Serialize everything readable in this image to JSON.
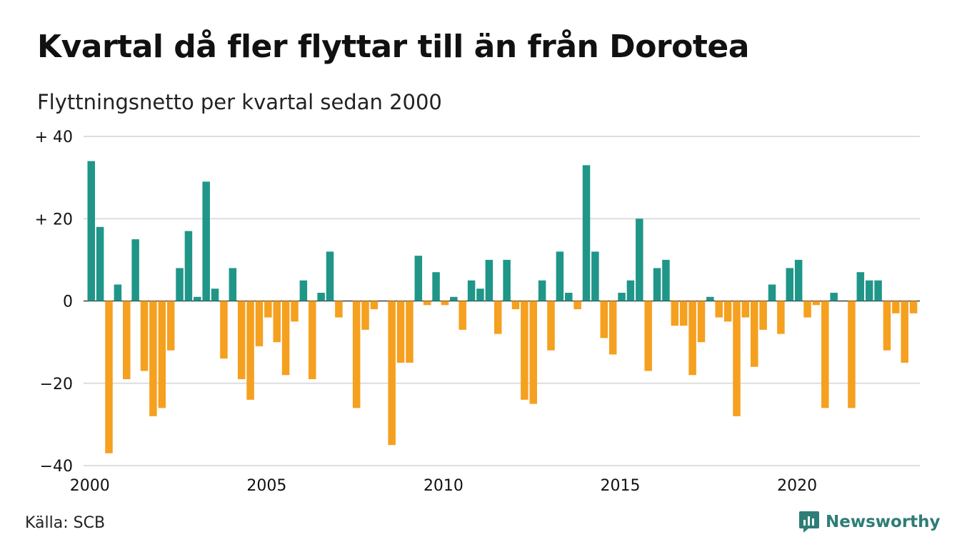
{
  "title": "Kvartal då fler flyttar till än från Dorotea",
  "subtitle": "Flyttningsnetto per kvartal sedan 2000",
  "source": "Källa: SCB",
  "brand": "Newsworthy",
  "colors": {
    "positive": "#1f9688",
    "negative": "#f5a01f",
    "grid": "#dddddd",
    "brand": "#2e7d76"
  },
  "chart_data": {
    "type": "bar",
    "xlabel": "",
    "ylabel": "",
    "ylim": [
      -40,
      40
    ],
    "y_ticks": [
      {
        "value": 40,
        "label": "+ 40"
      },
      {
        "value": 20,
        "label": "+ 20"
      },
      {
        "value": 0,
        "label": "0"
      },
      {
        "value": -20,
        "label": "−20"
      },
      {
        "value": -40,
        "label": "−40"
      }
    ],
    "x_ticks": [
      "2000",
      "2005",
      "2010",
      "2015",
      "2020"
    ],
    "start_year": 2000,
    "grid": true,
    "legend": "none",
    "values": [
      34,
      18,
      -37,
      4,
      -19,
      15,
      -17,
      -28,
      -26,
      -12,
      8,
      17,
      1,
      29,
      3,
      -14,
      8,
      -19,
      -24,
      -11,
      -4,
      -10,
      -18,
      -5,
      5,
      -19,
      2,
      12,
      -4,
      0,
      -26,
      -7,
      -2,
      0,
      -35,
      -15,
      -15,
      11,
      -1,
      7,
      -1,
      1,
      -7,
      5,
      3,
      10,
      -8,
      10,
      -2,
      -24,
      -25,
      5,
      -12,
      12,
      2,
      -2,
      33,
      12,
      -9,
      -13,
      2,
      5,
      20,
      -17,
      8,
      10,
      -6,
      -6,
      -18,
      -10,
      1,
      -4,
      -5,
      -28,
      -4,
      -16,
      -7,
      4,
      -8,
      8,
      10,
      -4,
      -1,
      -26,
      2,
      0,
      -26,
      7,
      5,
      5,
      -12,
      -3,
      -15,
      -3
    ]
  }
}
